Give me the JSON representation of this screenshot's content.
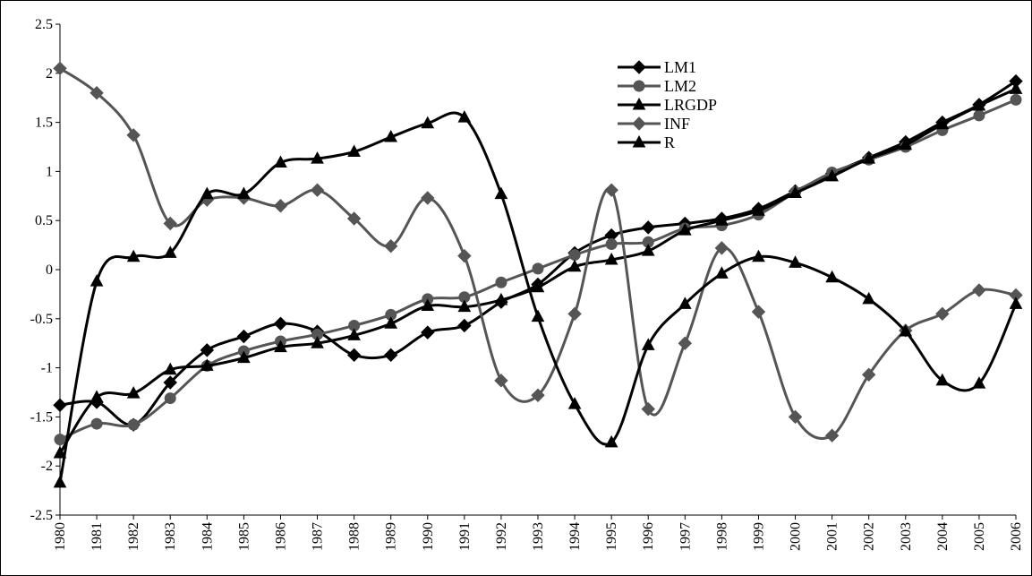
{
  "chart_data": {
    "type": "line",
    "x": [
      1980,
      1981,
      1982,
      1983,
      1984,
      1985,
      1986,
      1987,
      1988,
      1989,
      1990,
      1991,
      1992,
      1993,
      1994,
      1995,
      1996,
      1997,
      1998,
      1999,
      2000,
      2001,
      2002,
      2003,
      2004,
      2005,
      2006
    ],
    "ylim": [
      -2.5,
      2.5
    ],
    "yticks": [
      -2.5,
      -2,
      -1.5,
      -1,
      -0.5,
      0,
      0.5,
      1,
      1.5,
      2,
      2.5
    ],
    "series": [
      {
        "name": "LM1",
        "color": "#000000",
        "marker": "diamond",
        "values": [
          -1.38,
          -1.35,
          -1.58,
          -1.15,
          -0.82,
          -0.68,
          -0.55,
          -0.63,
          -0.87,
          -0.87,
          -0.64,
          -0.57,
          -0.33,
          -0.15,
          0.17,
          0.35,
          0.43,
          0.47,
          0.52,
          0.62,
          0.8,
          0.98,
          1.14,
          1.3,
          1.5,
          1.68,
          1.92
        ]
      },
      {
        "name": "LM2",
        "color": "#555555",
        "marker": "circle",
        "values": [
          -1.73,
          -1.57,
          -1.58,
          -1.31,
          -0.98,
          -0.83,
          -0.73,
          -0.66,
          -0.57,
          -0.46,
          -0.3,
          -0.28,
          -0.13,
          0.01,
          0.15,
          0.26,
          0.28,
          0.42,
          0.45,
          0.56,
          0.79,
          0.99,
          1.12,
          1.25,
          1.42,
          1.57,
          1.73
        ]
      },
      {
        "name": "LRGDP",
        "color": "#000000",
        "marker": "triangle",
        "values": [
          -1.87,
          -1.3,
          -1.26,
          -1.02,
          -0.98,
          -0.9,
          -0.79,
          -0.75,
          -0.67,
          -0.55,
          -0.37,
          -0.38,
          -0.31,
          -0.18,
          0.03,
          0.1,
          0.19,
          0.4,
          0.5,
          0.6,
          0.78,
          0.95,
          1.13,
          1.27,
          1.48,
          1.67,
          1.84
        ]
      },
      {
        "name": "INF",
        "color": "#555555",
        "marker": "diamond",
        "values": [
          2.05,
          1.8,
          1.37,
          0.47,
          0.71,
          0.73,
          0.65,
          0.81,
          0.52,
          0.24,
          0.73,
          0.14,
          -1.13,
          -1.28,
          -0.45,
          0.81,
          -1.42,
          -0.75,
          0.22,
          -0.43,
          -1.5,
          -1.69,
          -1.07,
          -0.62,
          -0.45,
          -0.21,
          -0.26
        ]
      },
      {
        "name": "R",
        "color": "#000000",
        "marker": "triangle",
        "values": [
          -2.17,
          -0.12,
          0.13,
          0.17,
          0.77,
          0.77,
          1.09,
          1.13,
          1.2,
          1.35,
          1.49,
          1.55,
          0.77,
          -0.48,
          -1.37,
          -1.76,
          -0.77,
          -0.35,
          -0.04,
          0.13,
          0.07,
          -0.08,
          -0.3,
          -0.63,
          -1.13,
          -1.16,
          -0.35
        ]
      }
    ]
  }
}
